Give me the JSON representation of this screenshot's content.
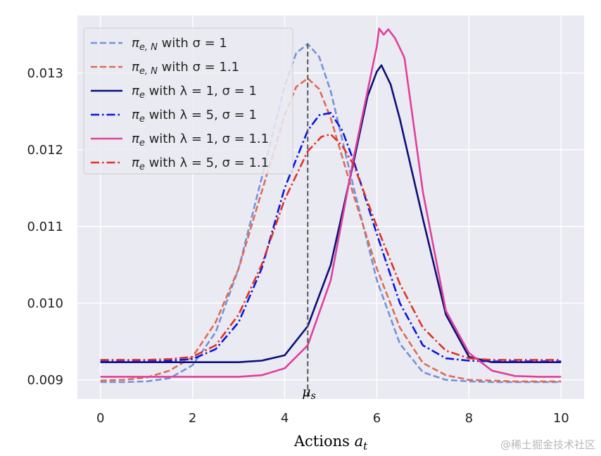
{
  "chart_data": {
    "type": "line",
    "title": "",
    "xlabel": "Actions a_t",
    "xlabel_text": "Actions ",
    "xlabel_var": "a",
    "xlabel_sub": "t",
    "ylabel": "",
    "xlim": [
      -0.5,
      10.5
    ],
    "ylim": [
      0.00875,
      0.01375
    ],
    "xticks": [
      0,
      2,
      4,
      6,
      8,
      10
    ],
    "xtick_labels": [
      "0",
      "2",
      "4",
      "6",
      "8",
      "10"
    ],
    "yticks": [
      0.009,
      0.01,
      0.011,
      0.012,
      0.013
    ],
    "ytick_labels": [
      "0.009",
      "0.010",
      "0.011",
      "0.012",
      "0.013"
    ],
    "grid": true,
    "legend_position": "top-left",
    "annotation": {
      "label": "μs",
      "symbol": "μ",
      "sub": "s",
      "x": 4.5,
      "style": "dashed vertical line"
    },
    "series": [
      {
        "name": "πe,N with σ = 1",
        "legend_main": "π",
        "legend_sub": "e, N",
        "legend_rest": " with σ = 1",
        "color": "#7393d9",
        "dash": "dashed",
        "width": 2.6,
        "x": [
          0,
          0.5,
          1,
          1.5,
          2,
          2.5,
          3,
          3.5,
          4,
          4.25,
          4.5,
          4.75,
          5,
          5.5,
          6,
          6.5,
          7,
          7.5,
          8,
          8.5,
          9,
          10
        ],
        "y": [
          0.00897,
          0.00897,
          0.00898,
          0.00902,
          0.00919,
          0.00962,
          0.01045,
          0.01163,
          0.01283,
          0.01326,
          0.01338,
          0.01321,
          0.01276,
          0.0115,
          0.0103,
          0.00947,
          0.0091,
          0.009,
          0.00898,
          0.00897,
          0.00897,
          0.00897
        ]
      },
      {
        "name": "πe,N with σ = 1.1",
        "legend_main": "π",
        "legend_sub": "e, N",
        "legend_rest": " with σ = 1.1",
        "color": "#e06a55",
        "dash": "dashed",
        "width": 2.6,
        "x": [
          0,
          0.5,
          1,
          1.5,
          2,
          2.5,
          3,
          3.5,
          4,
          4.25,
          4.5,
          4.75,
          5,
          5.5,
          6,
          6.5,
          7,
          7.5,
          8,
          8.5,
          9,
          10
        ],
        "y": [
          0.00899,
          0.009,
          0.00903,
          0.00912,
          0.0093,
          0.00975,
          0.01045,
          0.01145,
          0.01245,
          0.01282,
          0.01293,
          0.01279,
          0.01241,
          0.0114,
          0.01045,
          0.00968,
          0.00922,
          0.00906,
          0.009,
          0.00899,
          0.00898,
          0.00898
        ]
      },
      {
        "name": "πe with λ = 1, σ = 1",
        "legend_main": "π",
        "legend_sub": "e",
        "legend_rest": " with λ = 1, σ = 1",
        "color": "#0b0f78",
        "dash": "solid",
        "width": 2.6,
        "x": [
          0,
          1,
          2,
          3,
          3.5,
          4,
          4.5,
          5,
          5.5,
          5.8,
          6,
          6.1,
          6.3,
          6.5,
          7,
          7.5,
          8,
          8.5,
          9,
          10
        ],
        "y": [
          0.00923,
          0.00923,
          0.00923,
          0.00923,
          0.00925,
          0.00932,
          0.0097,
          0.0105,
          0.01185,
          0.0127,
          0.01302,
          0.0131,
          0.01285,
          0.0124,
          0.0111,
          0.00985,
          0.0093,
          0.00923,
          0.00923,
          0.00923
        ]
      },
      {
        "name": "πe with λ = 5, σ = 1",
        "legend_main": "π",
        "legend_sub": "e",
        "legend_rest": " with λ = 5, σ = 1",
        "color": "#0a14e0",
        "dash": "dashdot",
        "width": 2.6,
        "x": [
          0,
          1,
          1.5,
          2,
          2.5,
          3,
          3.5,
          4,
          4.5,
          4.75,
          5,
          5.25,
          5.5,
          6,
          6.5,
          7,
          7.5,
          8,
          8.5,
          10
        ],
        "y": [
          0.00924,
          0.00924,
          0.00925,
          0.00927,
          0.0094,
          0.00975,
          0.01045,
          0.0115,
          0.01225,
          0.01245,
          0.01248,
          0.01225,
          0.01185,
          0.0109,
          0.01,
          0.00945,
          0.00928,
          0.00925,
          0.00924,
          0.00924
        ]
      },
      {
        "name": "πe with λ = 1, σ = 1.1",
        "legend_main": "π",
        "legend_sub": "e",
        "legend_rest": " with λ = 1, σ = 1.1",
        "color": "#e0409a",
        "dash": "solid",
        "width": 2.6,
        "x": [
          0,
          1,
          2,
          3,
          3.5,
          4,
          4.5,
          5,
          5.5,
          6,
          6.05,
          6.15,
          6.25,
          6.4,
          6.6,
          7,
          7.5,
          8,
          8.5,
          9,
          9.5,
          10
        ],
        "y": [
          0.00904,
          0.00904,
          0.00904,
          0.00904,
          0.00906,
          0.00915,
          0.00945,
          0.0103,
          0.0119,
          0.01335,
          0.01358,
          0.0135,
          0.01357,
          0.01345,
          0.0132,
          0.01145,
          0.0099,
          0.00935,
          0.00912,
          0.00905,
          0.00904,
          0.00904
        ]
      },
      {
        "name": "πe with λ = 5, σ = 1.1",
        "legend_main": "π",
        "legend_sub": "e",
        "legend_rest": " with λ = 5, σ = 1.1",
        "color": "#e03225",
        "dash": "dashdot",
        "width": 2.6,
        "x": [
          0,
          1,
          1.5,
          2,
          2.5,
          3,
          3.5,
          4,
          4.5,
          4.8,
          5,
          5.25,
          5.5,
          6,
          6.5,
          7,
          7.5,
          8,
          8.5,
          10
        ],
        "y": [
          0.00926,
          0.00926,
          0.00927,
          0.0093,
          0.00945,
          0.00985,
          0.0105,
          0.01135,
          0.01198,
          0.01217,
          0.0122,
          0.01205,
          0.0118,
          0.011,
          0.01025,
          0.00968,
          0.00938,
          0.00928,
          0.00926,
          0.00926
        ]
      }
    ]
  },
  "watermark": "@稀土掘金技术社区"
}
